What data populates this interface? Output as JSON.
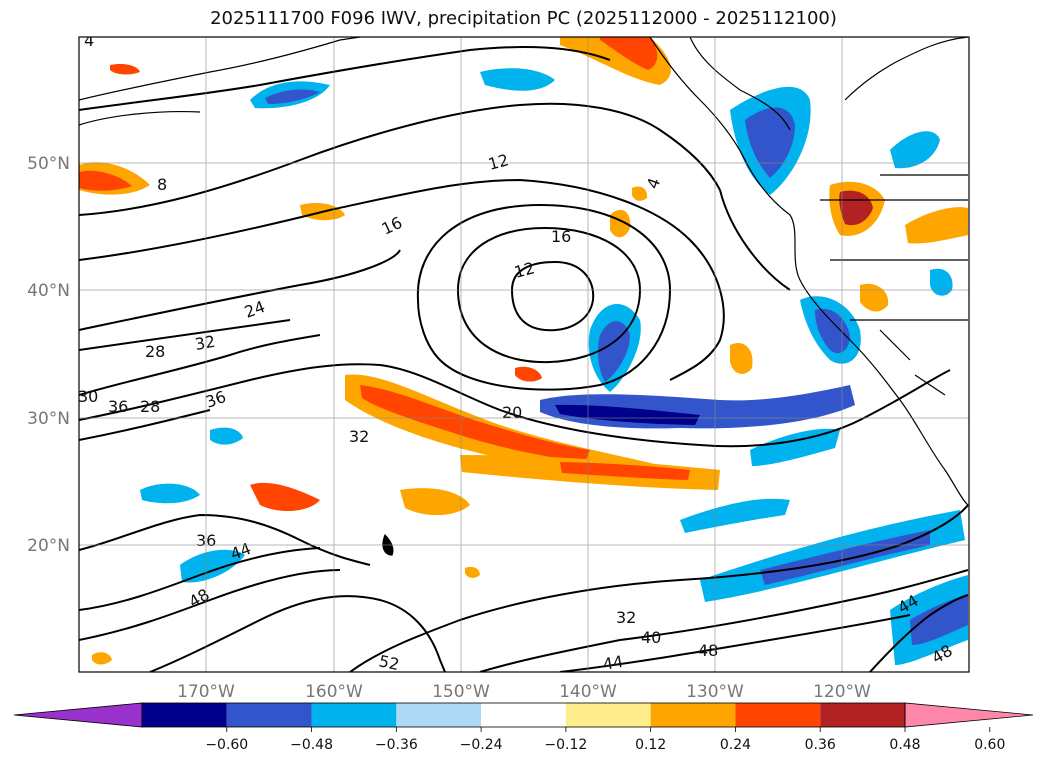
{
  "title": "2025111700 F096 IWV, precipitation PC (2025112000 - 2025112100)",
  "lat_labels": [
    "50°N",
    "40°N",
    "30°N",
    "20°N"
  ],
  "lon_labels": [
    "170°W",
    "160°W",
    "150°W",
    "140°W",
    "130°W",
    "120°W"
  ],
  "contour_labels": [
    "4",
    "8",
    "12",
    "16",
    "24",
    "28",
    "32",
    "36",
    "30",
    "28",
    "36",
    "12",
    "16",
    "4",
    "20",
    "32",
    "36",
    "44",
    "48",
    "52",
    "32",
    "40",
    "44",
    "48",
    "44",
    "48"
  ],
  "colorbar": {
    "colors": [
      "#9932cc",
      "#00008b",
      "#3355cc",
      "#00b2ee",
      "#add8f6",
      "#ffffff",
      "#ffec8b",
      "#ffa500",
      "#ff4500",
      "#b22222",
      "#ff88aa"
    ],
    "ticks": [
      "−0.60",
      "−0.48",
      "−0.36",
      "−0.24",
      "−0.12",
      "0.12",
      "0.24",
      "0.36",
      "0.48",
      "0.60"
    ]
  }
}
